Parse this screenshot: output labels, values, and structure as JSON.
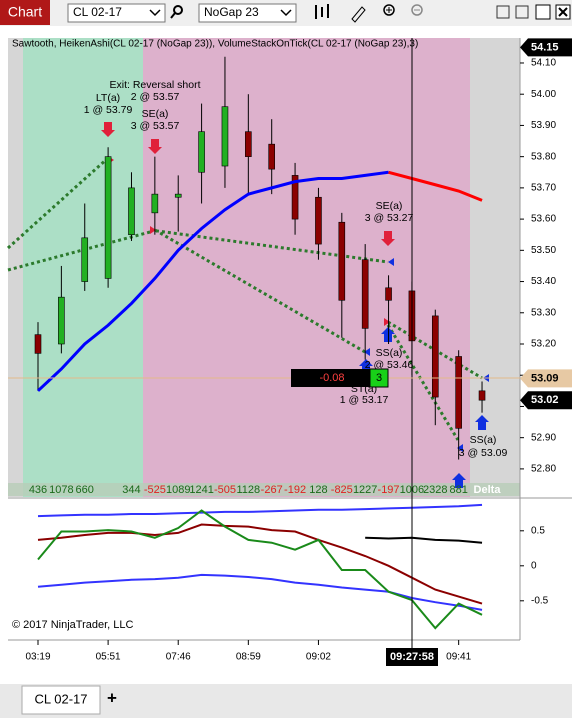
{
  "toolbar": {
    "tab": "Chart",
    "instrument": "CL 02-17",
    "bar_type": "NoGap 23"
  },
  "chart_data": [
    {
      "type": "candlestick",
      "title": "Sawtooth, HeikenAshi(CL 02-17 (NoGap 23)), VolumeStackOnTick(CL 02-17 (NoGap 23),3)",
      "categories": [
        "03:19",
        null,
        null,
        "05:51",
        null,
        null,
        "07:46",
        null,
        null,
        "08:59",
        null,
        null,
        "09:02",
        null,
        null,
        null,
        null,
        null,
        "09:41",
        null
      ],
      "open": [
        53.23,
        53.2,
        53.4,
        53.41,
        53.55,
        53.62,
        53.67,
        53.75,
        53.77,
        53.88,
        53.84,
        53.74,
        53.67,
        53.59,
        53.47,
        53.38,
        53.37,
        53.29,
        53.16,
        53.05
      ],
      "high": [
        53.27,
        53.45,
        53.65,
        53.83,
        53.75,
        53.8,
        53.74,
        53.97,
        54.12,
        54.0,
        53.92,
        53.78,
        53.7,
        53.62,
        53.52,
        53.42,
        53.4,
        53.31,
        53.18,
        53.08
      ],
      "low": [
        53.05,
        53.17,
        53.37,
        53.38,
        53.53,
        53.55,
        53.56,
        53.65,
        53.7,
        53.68,
        53.68,
        53.55,
        53.47,
        53.22,
        53.15,
        53.2,
        53.1,
        52.94,
        52.83,
        52.98
      ],
      "close": [
        53.17,
        53.35,
        53.54,
        53.8,
        53.7,
        53.68,
        53.68,
        53.88,
        53.96,
        53.8,
        53.76,
        53.6,
        53.52,
        53.34,
        53.25,
        53.34,
        53.21,
        53.03,
        52.93,
        53.02
      ],
      "up_color": "#22b022",
      "down_color": "#8b0000",
      "series": [
        {
          "color": "#0000ff",
          "values": [
            53.05,
            53.12,
            53.2,
            53.26,
            53.33,
            53.41,
            53.5,
            53.57,
            53.63,
            53.68,
            53.7,
            53.72,
            53.73,
            53.73,
            53.74,
            53.75,
            null,
            null,
            null,
            null
          ]
        },
        {
          "color": "#ff0000",
          "values": [
            null,
            null,
            null,
            null,
            null,
            null,
            null,
            null,
            null,
            null,
            null,
            null,
            null,
            null,
            null,
            53.75,
            53.73,
            53.71,
            53.69,
            53.66
          ]
        }
      ],
      "ylim": [
        52.71,
        54.18
      ],
      "yticks": [
        {
          "value": 52.8,
          "label": "52.80"
        },
        {
          "value": 52.9,
          "label": "52.90"
        },
        {
          "value": 53,
          "label": "53.00"
        },
        {
          "value": 53.1,
          "label": "53.10"
        },
        {
          "value": 53.2,
          "label": "53.20"
        },
        {
          "value": 53.3,
          "label": "53.30"
        },
        {
          "value": 53.4,
          "label": "53.40"
        },
        {
          "value": 53.5,
          "label": "53.50"
        },
        {
          "value": 53.6,
          "label": "53.60"
        },
        {
          "value": 53.7,
          "label": "53.70"
        },
        {
          "value": 53.8,
          "label": "53.80"
        },
        {
          "value": 53.9,
          "label": "53.90"
        },
        {
          "value": 54,
          "label": "54.00"
        },
        {
          "value": 54.1,
          "label": "54.10"
        }
      ],
      "annotations": [
        "Exit: Reversal short",
        "2 @ 53.57",
        "LT(a)",
        "1 @ 53.79",
        "SE(a)",
        "3 @ 53.57",
        "SE(a)",
        "3 @ 53.27",
        "SS(a)",
        "2 @ 53.46",
        "ST(a)",
        "1 @ 53.17",
        "SS(a)",
        "3 @ 53.09"
      ],
      "volume_delta": {
        "label": "Delta",
        "values": [
          436,
          1078,
          660,
          null,
          344,
          -525,
          1089,
          1241,
          -505,
          1128,
          -267,
          -192,
          128,
          -825,
          1227,
          -197,
          1006,
          2328,
          881,
          null
        ]
      },
      "price_markers": [
        54.15,
        53.09,
        53.02
      ]
    },
    {
      "type": "line",
      "series": [
        {
          "color": "#3333ff",
          "values": [
            0.71,
            0.72,
            0.73,
            0.73,
            0.74,
            0.74,
            0.75,
            0.76,
            0.77,
            0.77,
            0.78,
            0.79,
            0.8,
            0.8,
            0.81,
            0.82,
            0.83,
            0.84,
            0.85,
            0.87
          ]
        },
        {
          "color": "#3333ff",
          "values": [
            -0.3,
            -0.27,
            -0.24,
            -0.22,
            -0.2,
            -0.19,
            -0.17,
            -0.13,
            -0.14,
            -0.16,
            -0.19,
            -0.24,
            -0.27,
            -0.31,
            -0.34,
            -0.37,
            -0.46,
            -0.52,
            -0.57,
            -0.63
          ]
        },
        {
          "color": "#ffffff",
          "values": [
            0.26,
            0.3,
            0.31,
            0.34,
            0.37,
            0.37,
            0.39,
            0.4,
            0.41,
            0.41,
            0.41,
            0.41,
            0.41,
            0.41,
            0.4,
            null,
            null,
            null,
            null,
            null
          ]
        },
        {
          "color": "#000000",
          "values": [
            null,
            null,
            null,
            null,
            null,
            null,
            null,
            null,
            null,
            null,
            null,
            null,
            null,
            null,
            0.4,
            0.39,
            0.4,
            0.37,
            0.36,
            0.33
          ]
        },
        {
          "color": "#8b0000",
          "values": [
            0.37,
            0.4,
            0.44,
            0.47,
            0.47,
            0.44,
            0.47,
            0.59,
            0.57,
            0.56,
            0.51,
            0.49,
            0.37,
            0.26,
            0.14,
            0.0,
            -0.17,
            -0.34,
            -0.44,
            -0.54
          ]
        },
        {
          "color": "#1a8a1a",
          "values": [
            0.09,
            0.49,
            0.49,
            0.51,
            0.49,
            0.4,
            0.54,
            0.79,
            0.56,
            0.37,
            0.33,
            0.23,
            0.37,
            -0.06,
            -0.06,
            -0.37,
            -0.49,
            -0.89,
            -0.54,
            -0.7
          ]
        }
      ],
      "ylim": [
        -1.06,
        0.94
      ],
      "yticks": [
        0.5,
        0,
        -0.5
      ]
    }
  ],
  "crosshair": {
    "time": "09:27:58",
    "delta": -0.08,
    "count": 3
  },
  "footer": {
    "copyright": "© 2017 NinjaTrader, LLC",
    "tab": "CL 02-17",
    "add": "+"
  }
}
